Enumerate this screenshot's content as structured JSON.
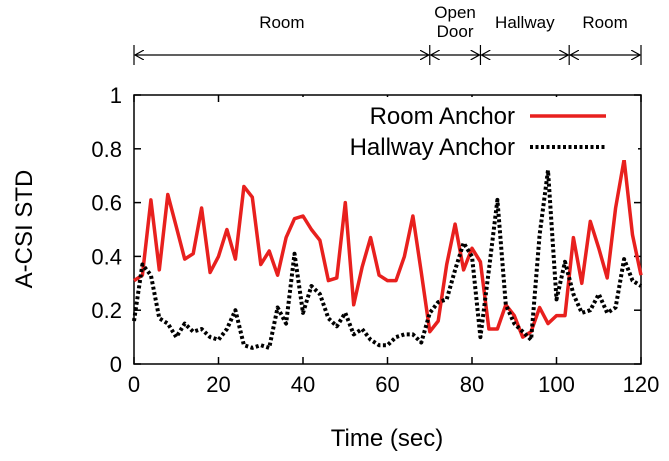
{
  "chart_data": {
    "type": "line",
    "xlabel": "Time (sec)",
    "ylabel": "A-CSI STD",
    "xlim": [
      0,
      120
    ],
    "ylim": [
      0,
      1
    ],
    "xticks": [
      "0",
      "20",
      "40",
      "60",
      "80",
      "100",
      "120"
    ],
    "yticks": [
      "0",
      "0.2",
      "0.4",
      "0.6",
      "0.8",
      "1"
    ],
    "legend_position": "top-right",
    "grid": false,
    "regions": [
      {
        "label": "Room",
        "start": 0,
        "end": 70
      },
      {
        "label": "Open Door",
        "start": 70,
        "end": 82
      },
      {
        "label": "Hallway",
        "start": 82,
        "end": 103
      },
      {
        "label": "Room",
        "start": 103,
        "end": 120
      }
    ],
    "series": [
      {
        "name": "Room Anchor",
        "color": "#e8201e",
        "style": "solid",
        "x": [
          0,
          2,
          4,
          6,
          8,
          10,
          12,
          14,
          16,
          18,
          20,
          22,
          24,
          26,
          28,
          30,
          32,
          34,
          36,
          38,
          40,
          42,
          44,
          46,
          48,
          50,
          52,
          54,
          56,
          58,
          60,
          62,
          64,
          66,
          68,
          70,
          72,
          74,
          76,
          78,
          80,
          82,
          84,
          86,
          88,
          90,
          92,
          94,
          96,
          98,
          100,
          102,
          104,
          106,
          108,
          110,
          112,
          114,
          116,
          118,
          120
        ],
        "values": [
          0.31,
          0.33,
          0.61,
          0.35,
          0.63,
          0.51,
          0.39,
          0.41,
          0.58,
          0.34,
          0.4,
          0.5,
          0.39,
          0.66,
          0.62,
          0.37,
          0.42,
          0.33,
          0.47,
          0.54,
          0.55,
          0.5,
          0.46,
          0.31,
          0.32,
          0.6,
          0.22,
          0.36,
          0.47,
          0.33,
          0.31,
          0.31,
          0.4,
          0.55,
          0.34,
          0.12,
          0.16,
          0.37,
          0.52,
          0.35,
          0.43,
          0.38,
          0.13,
          0.13,
          0.22,
          0.18,
          0.1,
          0.12,
          0.21,
          0.15,
          0.18,
          0.18,
          0.47,
          0.3,
          0.53,
          0.43,
          0.32,
          0.58,
          0.76,
          0.48,
          0.33
        ]
      },
      {
        "name": "Hallway Anchor",
        "color": "#000000",
        "style": "dotted",
        "x": [
          0,
          2,
          4,
          6,
          8,
          10,
          12,
          14,
          16,
          18,
          20,
          22,
          24,
          26,
          28,
          30,
          32,
          34,
          36,
          38,
          40,
          42,
          44,
          46,
          48,
          50,
          52,
          54,
          56,
          58,
          60,
          62,
          64,
          66,
          68,
          70,
          72,
          74,
          76,
          78,
          80,
          82,
          84,
          86,
          88,
          90,
          92,
          94,
          96,
          98,
          100,
          102,
          104,
          106,
          108,
          110,
          112,
          114,
          116,
          118,
          120
        ],
        "values": [
          0.16,
          0.37,
          0.33,
          0.17,
          0.15,
          0.1,
          0.15,
          0.12,
          0.13,
          0.1,
          0.09,
          0.13,
          0.2,
          0.07,
          0.06,
          0.07,
          0.06,
          0.21,
          0.15,
          0.41,
          0.19,
          0.29,
          0.26,
          0.17,
          0.14,
          0.19,
          0.11,
          0.13,
          0.09,
          0.07,
          0.07,
          0.1,
          0.11,
          0.11,
          0.08,
          0.19,
          0.23,
          0.24,
          0.35,
          0.45,
          0.4,
          0.1,
          0.35,
          0.61,
          0.22,
          0.15,
          0.12,
          0.09,
          0.48,
          0.72,
          0.24,
          0.38,
          0.26,
          0.19,
          0.2,
          0.26,
          0.19,
          0.21,
          0.39,
          0.31,
          0.29
        ]
      }
    ]
  }
}
